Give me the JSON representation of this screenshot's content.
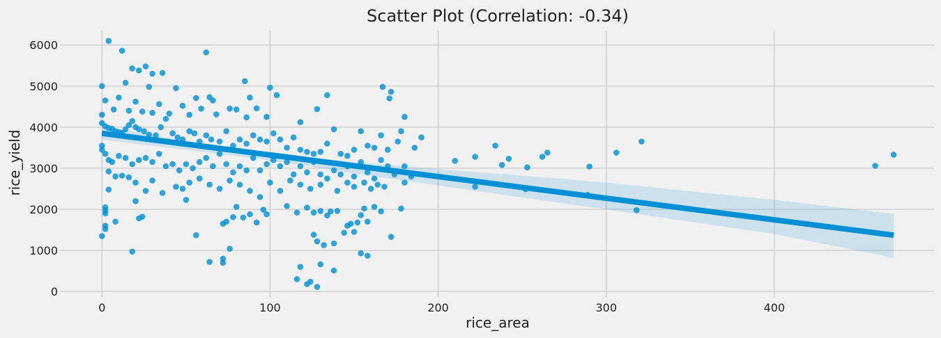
{
  "chart_data": {
    "type": "scatter",
    "title": "Scatter Plot (Correlation: -0.34)",
    "xlabel": "rice_area",
    "ylabel": "rice_yield",
    "xlim": [
      -25,
      495
    ],
    "ylim": [
      -150,
      6350
    ],
    "x_ticks": [
      0,
      100,
      200,
      300,
      400
    ],
    "y_ticks": [
      0,
      1000,
      2000,
      3000,
      4000,
      5000,
      6000
    ],
    "x_tick_labels": [
      "0",
      "100",
      "200",
      "300",
      "400"
    ],
    "y_tick_labels": [
      "0",
      "1000",
      "2000",
      "3000",
      "4000",
      "5000",
      "6000"
    ],
    "grid": true,
    "colors": {
      "background": "#f0f0f0",
      "grid": "#cbcbcb",
      "points": "#008fd5",
      "regression_line": "#008fd5",
      "confidence_band": "#008fd5"
    },
    "regression": {
      "x": [
        0,
        471
      ],
      "y": [
        3850,
        1370
      ]
    },
    "confidence_band": {
      "x": [
        0,
        50,
        100,
        150,
        200,
        250,
        300,
        350,
        400,
        471
      ],
      "upper": [
        4020,
        3670,
        3380,
        3150,
        2980,
        2820,
        2650,
        2440,
        2230,
        1890
      ],
      "lower": [
        3700,
        3450,
        3190,
        2880,
        2580,
        2290,
        2000,
        1700,
        1400,
        820
      ]
    },
    "series": [
      {
        "points": [
          [
            4,
            6100
          ],
          [
            12,
            5860
          ],
          [
            62,
            5820
          ],
          [
            26,
            5480
          ],
          [
            18,
            5430
          ],
          [
            22,
            5380
          ],
          [
            36,
            5320
          ],
          [
            85,
            5120
          ],
          [
            30,
            5300
          ],
          [
            14,
            5080
          ],
          [
            28,
            4980
          ],
          [
            44,
            4950
          ],
          [
            100,
            4960
          ],
          [
            167,
            4980
          ],
          [
            172,
            4860
          ],
          [
            104,
            4780
          ],
          [
            134,
            4780
          ],
          [
            171,
            4700
          ],
          [
            88,
            4720
          ],
          [
            56,
            4710
          ],
          [
            64,
            4730
          ],
          [
            66,
            4650
          ],
          [
            0,
            5000
          ],
          [
            2,
            4650
          ],
          [
            10,
            4720
          ],
          [
            20,
            4620
          ],
          [
            34,
            4560
          ],
          [
            48,
            4520
          ],
          [
            76,
            4450
          ],
          [
            80,
            4430
          ],
          [
            92,
            4460
          ],
          [
            59,
            4450
          ],
          [
            128,
            4440
          ],
          [
            7,
            4430
          ],
          [
            16,
            4400
          ],
          [
            24,
            4380
          ],
          [
            30,
            4350
          ],
          [
            40,
            4330
          ],
          [
            52,
            4300
          ],
          [
            68,
            4310
          ],
          [
            86,
            4240
          ],
          [
            98,
            4250
          ],
          [
            118,
            4120
          ],
          [
            180,
            4250
          ],
          [
            0,
            4300
          ],
          [
            0,
            4100
          ],
          [
            2,
            4020
          ],
          [
            4,
            3980
          ],
          [
            6,
            3960
          ],
          [
            8,
            3900
          ],
          [
            10,
            3880
          ],
          [
            12,
            3860
          ],
          [
            14,
            3950
          ],
          [
            16,
            4050
          ],
          [
            18,
            4150
          ],
          [
            20,
            4000
          ],
          [
            22,
            3950
          ],
          [
            25,
            3900
          ],
          [
            28,
            3820
          ],
          [
            32,
            3800
          ],
          [
            35,
            4000
          ],
          [
            38,
            4200
          ],
          [
            42,
            3850
          ],
          [
            45,
            3750
          ],
          [
            48,
            3700
          ],
          [
            52,
            3900
          ],
          [
            55,
            3850
          ],
          [
            58,
            3650
          ],
          [
            62,
            3800
          ],
          [
            65,
            3700
          ],
          [
            70,
            3650
          ],
          [
            74,
            3900
          ],
          [
            78,
            3550
          ],
          [
            82,
            3700
          ],
          [
            86,
            3600
          ],
          [
            90,
            3800
          ],
          [
            94,
            3700
          ],
          [
            98,
            3650
          ],
          [
            102,
            3850
          ],
          [
            106,
            3700
          ],
          [
            110,
            3500
          ],
          [
            114,
            3750
          ],
          [
            118,
            3450
          ],
          [
            122,
            3400
          ],
          [
            126,
            3350
          ],
          [
            130,
            3400
          ],
          [
            134,
            3600
          ],
          [
            138,
            3950
          ],
          [
            142,
            3350
          ],
          [
            146,
            3300
          ],
          [
            150,
            3450
          ],
          [
            154,
            3900
          ],
          [
            158,
            3550
          ],
          [
            162,
            3500
          ],
          [
            166,
            3800
          ],
          [
            170,
            3450
          ],
          [
            176,
            3650
          ],
          [
            178,
            3900
          ],
          [
            186,
            3500
          ],
          [
            190,
            3750
          ],
          [
            0,
            3550
          ],
          [
            0,
            3450
          ],
          [
            2,
            3350
          ],
          [
            4,
            3200
          ],
          [
            6,
            3150
          ],
          [
            10,
            3300
          ],
          [
            14,
            3250
          ],
          [
            18,
            3100
          ],
          [
            22,
            3200
          ],
          [
            26,
            3250
          ],
          [
            30,
            3150
          ],
          [
            34,
            3350
          ],
          [
            38,
            3050
          ],
          [
            42,
            3100
          ],
          [
            46,
            2950
          ],
          [
            50,
            3100
          ],
          [
            54,
            3000
          ],
          [
            58,
            3150
          ],
          [
            62,
            3250
          ],
          [
            66,
            3050
          ],
          [
            70,
            3350
          ],
          [
            74,
            3100
          ],
          [
            78,
            2900
          ],
          [
            82,
            3050
          ],
          [
            86,
            2950
          ],
          [
            90,
            3250
          ],
          [
            94,
            2950
          ],
          [
            98,
            3100
          ],
          [
            102,
            3200
          ],
          [
            106,
            3050
          ],
          [
            110,
            3150
          ],
          [
            114,
            2850
          ],
          [
            118,
            3050
          ],
          [
            122,
            2900
          ],
          [
            126,
            3150
          ],
          [
            130,
            2850
          ],
          [
            134,
            2750
          ],
          [
            138,
            2950
          ],
          [
            142,
            2850
          ],
          [
            146,
            3050
          ],
          [
            150,
            2800
          ],
          [
            154,
            3150
          ],
          [
            158,
            2900
          ],
          [
            162,
            2750
          ],
          [
            166,
            3200
          ],
          [
            170,
            3050
          ],
          [
            174,
            2850
          ],
          [
            180,
            3050
          ],
          [
            184,
            2800
          ],
          [
            210,
            3180
          ],
          [
            222,
            3280
          ],
          [
            234,
            3550
          ],
          [
            238,
            3080
          ],
          [
            242,
            3230
          ],
          [
            253,
            3020
          ],
          [
            262,
            3280
          ],
          [
            265,
            3380
          ],
          [
            290,
            3040
          ],
          [
            306,
            3380
          ],
          [
            321,
            3650
          ],
          [
            460,
            3060
          ],
          [
            471,
            3330
          ],
          [
            222,
            2550
          ],
          [
            252,
            2490
          ],
          [
            289,
            2350
          ],
          [
            318,
            1980
          ],
          [
            4,
            2920
          ],
          [
            8,
            2800
          ],
          [
            12,
            2820
          ],
          [
            16,
            2780
          ],
          [
            20,
            2650
          ],
          [
            26,
            2450
          ],
          [
            30,
            2700
          ],
          [
            36,
            2400
          ],
          [
            44,
            2550
          ],
          [
            48,
            2500
          ],
          [
            52,
            2650
          ],
          [
            58,
            2750
          ],
          [
            64,
            2600
          ],
          [
            70,
            2500
          ],
          [
            76,
            2700
          ],
          [
            82,
            2600
          ],
          [
            88,
            2450
          ],
          [
            94,
            2300
          ],
          [
            100,
            2650
          ],
          [
            106,
            2450
          ],
          [
            112,
            2700
          ],
          [
            118,
            2600
          ],
          [
            124,
            2500
          ],
          [
            130,
            2600
          ],
          [
            140,
            2450
          ],
          [
            146,
            2650
          ],
          [
            150,
            2550
          ],
          [
            156,
            2650
          ],
          [
            160,
            2500
          ],
          [
            164,
            2600
          ],
          [
            168,
            2550
          ],
          [
            180,
            2650
          ],
          [
            4,
            2480
          ],
          [
            20,
            2200
          ],
          [
            2,
            2050
          ],
          [
            2,
            1980
          ],
          [
            2,
            1900
          ],
          [
            22,
            1780
          ],
          [
            24,
            1820
          ],
          [
            8,
            1700
          ],
          [
            2,
            1600
          ],
          [
            2,
            1520
          ],
          [
            0,
            1350
          ],
          [
            18,
            970
          ],
          [
            50,
            2230
          ],
          [
            56,
            1370
          ],
          [
            64,
            720
          ],
          [
            72,
            800
          ],
          [
            72,
            700
          ],
          [
            76,
            1040
          ],
          [
            78,
            1810
          ],
          [
            80,
            2060
          ],
          [
            84,
            1800
          ],
          [
            88,
            1880
          ],
          [
            92,
            1680
          ],
          [
            96,
            1990
          ],
          [
            98,
            1880
          ],
          [
            110,
            2080
          ],
          [
            116,
            1920
          ],
          [
            122,
            2040
          ],
          [
            126,
            1920
          ],
          [
            130,
            1960
          ],
          [
            134,
            1850
          ],
          [
            136,
            1950
          ],
          [
            140,
            1960
          ],
          [
            144,
            1430
          ],
          [
            146,
            1600
          ],
          [
            148,
            1650
          ],
          [
            150,
            1450
          ],
          [
            152,
            1680
          ],
          [
            154,
            1860
          ],
          [
            156,
            2020
          ],
          [
            158,
            1700
          ],
          [
            162,
            2060
          ],
          [
            166,
            1950
          ],
          [
            172,
            1330
          ],
          [
            178,
            2020
          ],
          [
            126,
            1380
          ],
          [
            128,
            1220
          ],
          [
            132,
            1130
          ],
          [
            138,
            1170
          ],
          [
            154,
            930
          ],
          [
            158,
            870
          ],
          [
            118,
            600
          ],
          [
            116,
            300
          ],
          [
            122,
            180
          ],
          [
            124,
            240
          ],
          [
            128,
            110
          ],
          [
            130,
            660
          ],
          [
            138,
            510
          ],
          [
            72,
            1650
          ],
          [
            74,
            1700
          ]
        ]
      }
    ]
  }
}
